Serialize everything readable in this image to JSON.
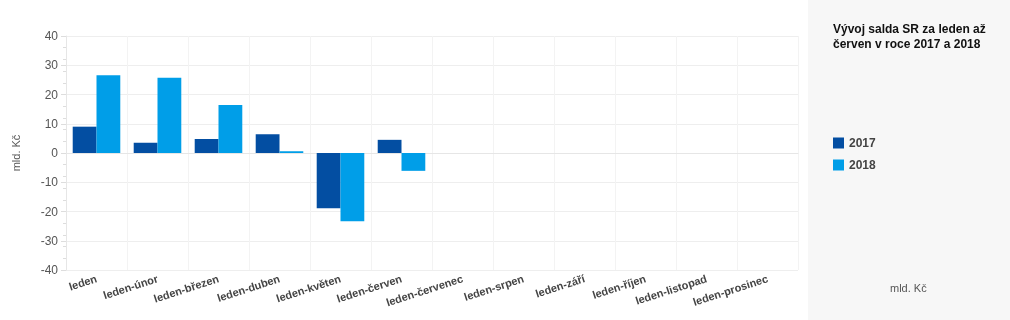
{
  "chart_data": {
    "type": "bar",
    "title": "Vývoj salda SR za leden až červen v roce 2017 a 2018",
    "ylabel": "mld. Kč",
    "annotations": [
      "mld. Kč"
    ],
    "categories": [
      "leden",
      "leden-únor",
      "leden-březen",
      "leden-duben",
      "leden-květen",
      "leden-červen",
      "leden-červenec",
      "leden-srpen",
      "leden-září",
      "leden-říjen",
      "leden-listopad",
      "leden-prosinec"
    ],
    "series": [
      {
        "name": "2017",
        "color": "#034ea2",
        "values": [
          9.0,
          3.5,
          4.8,
          6.4,
          -18.9,
          4.5,
          null,
          null,
          null,
          null,
          null,
          null
        ]
      },
      {
        "name": "2018",
        "color": "#009ee8",
        "values": [
          26.6,
          25.7,
          16.4,
          0.6,
          -23.3,
          -6.1,
          null,
          null,
          null,
          null,
          null,
          null
        ]
      }
    ],
    "ylim": [
      -40,
      40
    ],
    "yticks": [
      -40,
      -30,
      -20,
      -10,
      0,
      10,
      20,
      30,
      40
    ],
    "grid": true,
    "legend": "right"
  }
}
